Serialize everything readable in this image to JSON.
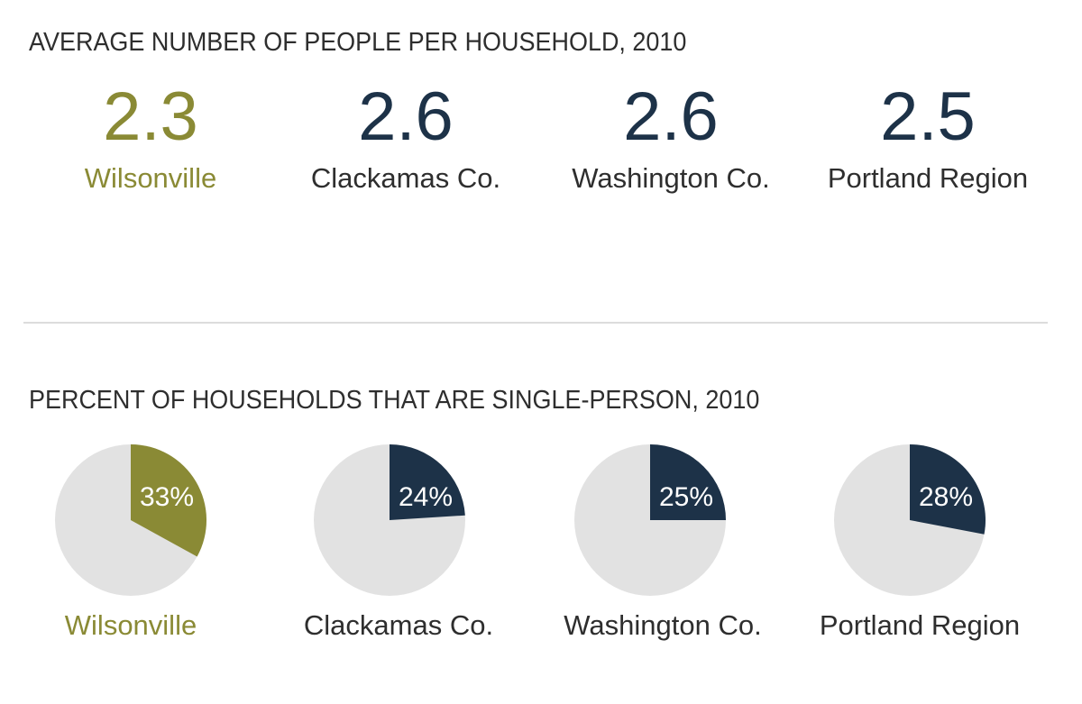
{
  "colors": {
    "highlight": "#8a8a35",
    "dark": "#1d3248",
    "pie_bg": "#e2e2e2",
    "text": "#2e2e2e",
    "divider": "#dcdcdc"
  },
  "chart_data": [
    {
      "type": "table",
      "title": "AVERAGE NUMBER OF PEOPLE PER HOUSEHOLD, 2010",
      "categories": [
        "Wilsonville",
        "Clackamas Co.",
        "Washington Co.",
        "Portland Region"
      ],
      "values": [
        2.3,
        2.6,
        2.6,
        2.5
      ],
      "value_labels": [
        "2.3",
        "2.6",
        "2.6",
        "2.5"
      ],
      "highlight_index": 0
    },
    {
      "type": "pie",
      "title": "PERCENT OF HOUSEHOLDS THAT ARE SINGLE-PERSON, 2010",
      "categories": [
        "Wilsonville",
        "Clackamas Co.",
        "Washington Co.",
        "Portland Region"
      ],
      "values": [
        33,
        24,
        25,
        28
      ],
      "value_labels": [
        "33%",
        "24%",
        "25%",
        "28%"
      ],
      "highlight_index": 0
    }
  ]
}
